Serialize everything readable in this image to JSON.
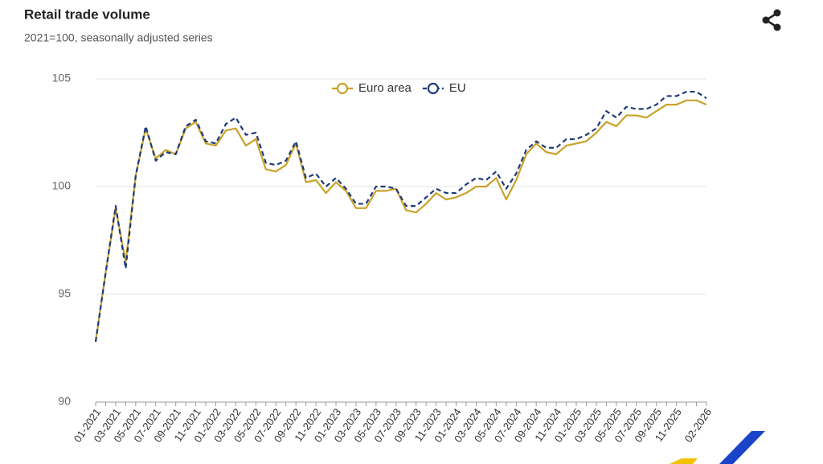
{
  "chart_data": {
    "type": "line",
    "title": "Retail trade volume",
    "subtitle": "2021=100, seasonally adjusted series",
    "categories": [
      "01-2021",
      null,
      "03-2021",
      null,
      "05-2021",
      null,
      "07-2021",
      null,
      "09-2021",
      null,
      "11-2021",
      null,
      "01-2022",
      null,
      "03-2022",
      null,
      "05-2022",
      null,
      "07-2022",
      null,
      "09-2022",
      null,
      "11-2022",
      null,
      "01-2023",
      null,
      "03-2023",
      null,
      "05-2023",
      null,
      "07-2023",
      null,
      "09-2023",
      null,
      "11-2023",
      null,
      "01-2024",
      null,
      "03-2024",
      null,
      "05-2024",
      null,
      "07-2024",
      null,
      "09-2024",
      null,
      "11-2024",
      null,
      "01-2025",
      null,
      "03-2025",
      null,
      "05-2025",
      null,
      "07-2025",
      null,
      "09-2025",
      null,
      "11-2025",
      null,
      null,
      "02-2026"
    ],
    "series": [
      {
        "name": "Euro area",
        "color": "#c9a227",
        "dashed": false,
        "values": [
          92.8,
          96.0,
          99.0,
          96.5,
          100.5,
          102.7,
          101.3,
          101.7,
          101.5,
          102.7,
          103.0,
          102.0,
          101.9,
          102.6,
          102.7,
          101.9,
          102.2,
          100.8,
          100.7,
          101.0,
          102.0,
          100.2,
          100.3,
          99.7,
          100.2,
          99.8,
          99.0,
          99.0,
          99.8,
          99.8,
          99.9,
          98.9,
          98.8,
          99.2,
          99.7,
          99.4,
          99.5,
          99.7,
          100.0,
          100.0,
          100.4,
          99.4,
          100.3,
          101.5,
          102.0,
          101.6,
          101.5,
          101.9,
          102.0,
          102.1,
          102.5,
          103.0,
          102.8,
          103.3,
          103.3,
          103.2,
          103.5,
          103.8,
          103.8,
          104.0,
          104.0,
          103.8
        ]
      },
      {
        "name": "EU",
        "color": "#1d3a7a",
        "dashed": true,
        "values": [
          92.8,
          96.0,
          99.1,
          96.2,
          100.5,
          102.8,
          101.2,
          101.6,
          101.5,
          102.8,
          103.1,
          102.1,
          102.0,
          102.9,
          103.2,
          102.4,
          102.5,
          101.1,
          101.0,
          101.2,
          102.1,
          100.4,
          100.6,
          100.0,
          100.4,
          99.9,
          99.2,
          99.2,
          100.0,
          100.0,
          99.9,
          99.1,
          99.1,
          99.5,
          99.9,
          99.7,
          99.7,
          100.1,
          100.4,
          100.3,
          100.7,
          99.9,
          100.6,
          101.7,
          102.1,
          101.8,
          101.8,
          102.2,
          102.2,
          102.4,
          102.7,
          103.5,
          103.2,
          103.7,
          103.6,
          103.6,
          103.8,
          104.2,
          104.2,
          104.4,
          104.4,
          104.1
        ]
      }
    ],
    "ylim": [
      90,
      105
    ],
    "yticks": [
      90,
      95,
      100,
      105
    ],
    "grid": true,
    "legend": "top"
  }
}
